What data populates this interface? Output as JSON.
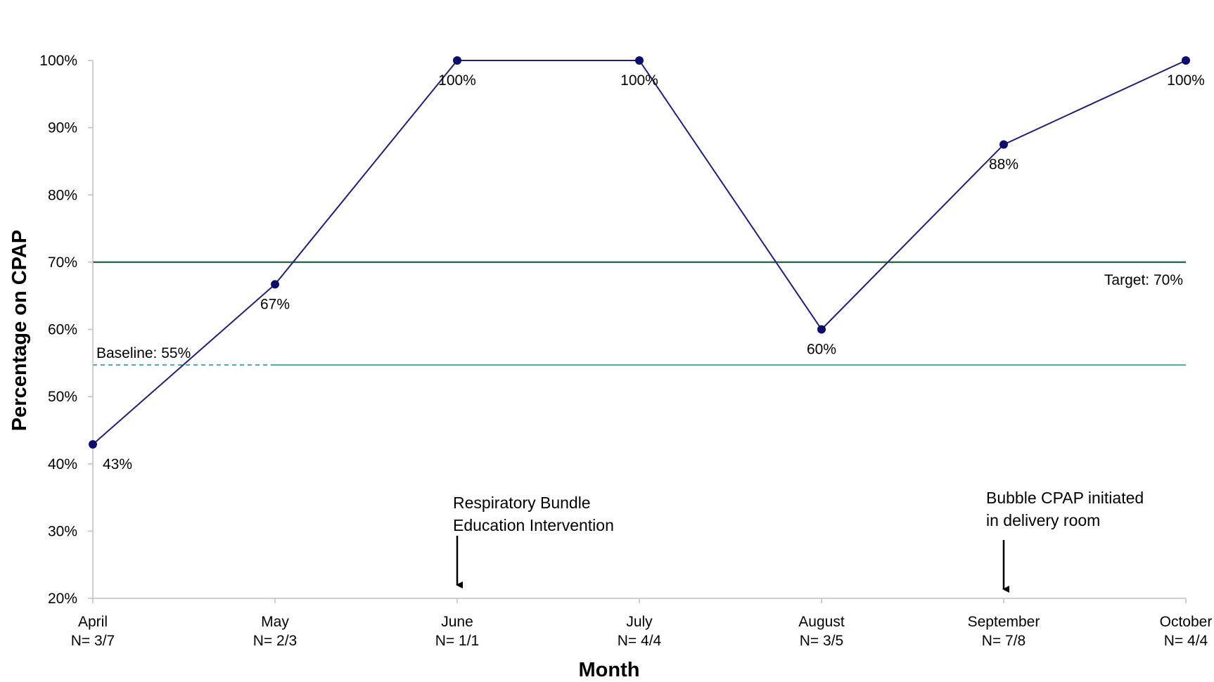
{
  "chart_data": {
    "type": "line",
    "xlabel": "Month",
    "ylabel": "Percentage on CPAP",
    "ylim": [
      20,
      100
    ],
    "y_ticks": [
      "20%",
      "30%",
      "40%",
      "50%",
      "60%",
      "70%",
      "80%",
      "90%",
      "100%"
    ],
    "y_tick_values": [
      20,
      30,
      40,
      50,
      60,
      70,
      80,
      90,
      100
    ],
    "categories": [
      "April",
      "May",
      "June",
      "July",
      "August",
      "September",
      "October"
    ],
    "category_counts": [
      "N= 3/7",
      "N= 2/3",
      "N= 1/1",
      "N= 4/4",
      "N= 3/5",
      "N= 7/8",
      "N= 4/4"
    ],
    "series": [
      {
        "values": [
          42.9,
          66.7,
          100,
          100,
          60,
          87.5,
          100
        ],
        "labels": [
          "43%",
          "67%",
          "100%",
          "100%",
          "60%",
          "88%",
          "100%"
        ],
        "color": "#1f1f7a"
      }
    ],
    "reference_lines": {
      "target": {
        "value": 70,
        "label": "Target: 70%",
        "color": "#2e6b4f"
      },
      "baseline": {
        "value": 54.7,
        "label": "Baseline: 55%",
        "color": "#4aa8a0"
      }
    },
    "annotations": [
      {
        "category": "June",
        "lines": [
          "Respiratory Bundle",
          "Education Intervention"
        ]
      },
      {
        "category": "September",
        "lines": [
          "Bubble CPAP initiated",
          "in delivery room"
        ]
      }
    ],
    "grid": false,
    "legend": "none"
  }
}
